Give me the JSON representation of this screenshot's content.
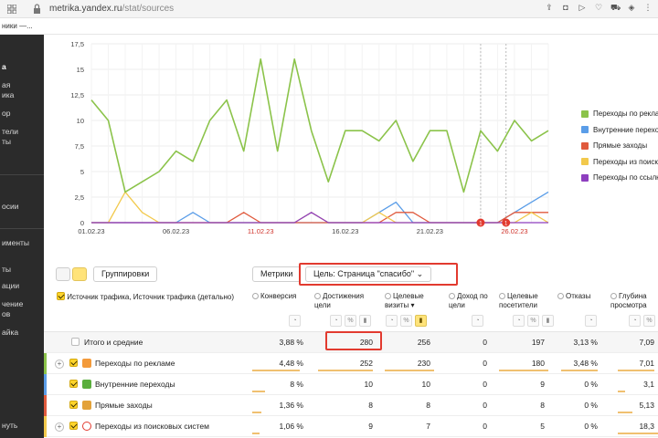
{
  "browser": {
    "url_host": "metrika.yandex.ru",
    "url_path": "/stat/sources",
    "tab_title": "ники —..."
  },
  "sidebar": {
    "items": [
      {
        "label": "а",
        "active": true
      },
      {
        "label": "ая",
        "active": false
      },
      {
        "label": "ика",
        "active": false
      },
      {
        "label": "ор",
        "active": false
      },
      {
        "label": "тели",
        "active": false
      },
      {
        "label": "ты",
        "active": false
      },
      {
        "label": "осии",
        "active": false
      },
      {
        "label": "именты",
        "active": false
      },
      {
        "label": "ты",
        "active": false
      },
      {
        "label": "ации",
        "active": false
      },
      {
        "label": "чение",
        "active": false
      },
      {
        "label": "ов",
        "active": false
      },
      {
        "label": "айка",
        "active": false
      },
      {
        "label": "нуть",
        "active": false
      }
    ]
  },
  "chart_data": {
    "type": "line",
    "title": "",
    "xlabel": "",
    "ylabel": "",
    "x_tick_labels": [
      {
        "label": "01.02.23",
        "index": 0,
        "weekend": false
      },
      {
        "label": "06.02.23",
        "index": 5,
        "weekend": false
      },
      {
        "label": "11.02.23",
        "index": 10,
        "weekend": true
      },
      {
        "label": "16.02.23",
        "index": 15,
        "weekend": false
      },
      {
        "label": "21.02.23",
        "index": 20,
        "weekend": false
      },
      {
        "label": "26.02.23",
        "index": 25,
        "weekend": true
      }
    ],
    "x_count": 28,
    "y_ticks": [
      "0",
      "2,5",
      "5",
      "7,5",
      "10",
      "12,5",
      "15",
      "17,5"
    ],
    "ylim": [
      0,
      17.5
    ],
    "grid": true,
    "legend_position": "right",
    "annotation_markers": [
      {
        "index": 23,
        "label": "1"
      },
      {
        "index": 24.5,
        "label": "1"
      }
    ],
    "series": [
      {
        "name": "Переходы по рекламе",
        "color": "#8bc34a",
        "values": [
          12,
          10,
          3,
          4,
          5,
          7,
          6,
          10,
          12,
          7,
          16,
          7,
          16,
          9,
          4,
          9,
          9,
          8,
          10,
          6,
          9,
          9,
          3,
          9,
          7,
          10,
          8,
          9
        ]
      },
      {
        "name": "Внутренние переходы",
        "color": "#5a9de8",
        "values": [
          0,
          0,
          0,
          0,
          0,
          0,
          1,
          0,
          0,
          0,
          0,
          0,
          0,
          0,
          0,
          0,
          0,
          1,
          2,
          0,
          0,
          0,
          0,
          0,
          0,
          1,
          2,
          3
        ]
      },
      {
        "name": "Прямые заходы",
        "color": "#e05a3d",
        "values": [
          0,
          0,
          0,
          0,
          0,
          0,
          0,
          0,
          0,
          1,
          0,
          0,
          0,
          0,
          0,
          0,
          0,
          0,
          1,
          1,
          0,
          0,
          0,
          0,
          0,
          1,
          1,
          1
        ]
      },
      {
        "name": "Переходы из поисковых систем",
        "color": "#f2c94c",
        "values": [
          0,
          0,
          3,
          1,
          0,
          0,
          0,
          0,
          0,
          0,
          0,
          0,
          0,
          1,
          0,
          0,
          0,
          1,
          0,
          0,
          0,
          0,
          0,
          0,
          0,
          0,
          1,
          0
        ]
      },
      {
        "name": "Переходы по ссылкам на сайтах",
        "color": "#8e3fbf",
        "values": [
          0,
          0,
          0,
          0,
          0,
          0,
          0,
          0,
          0,
          0,
          0,
          0,
          0,
          1,
          0,
          0,
          0,
          0,
          0,
          0,
          0,
          0,
          0,
          0,
          0,
          0,
          0,
          0
        ]
      }
    ]
  },
  "toolbar": {
    "groupings_label": "Группировки",
    "metrics_label": "Метрики",
    "goal_label": "Цель: Страница \"спасибо\""
  },
  "table": {
    "dimension_header": "Источник трафика, Источник трафика (детально)",
    "columns": [
      {
        "title": "Конверсия",
        "sorted": false
      },
      {
        "title": "Достижения цели",
        "sorted": false
      },
      {
        "title": "Целевые визиты",
        "sorted": true
      },
      {
        "title": "Доход по цели",
        "sorted": false
      },
      {
        "title": "Целевые посетители",
        "sorted": false
      },
      {
        "title": "Отказы",
        "sorted": false
      },
      {
        "title": "Глубина просмотра",
        "sorted": false
      }
    ],
    "total": {
      "label": "Итого и средние",
      "values": [
        "3,88 %",
        "280",
        "256",
        "0",
        "197",
        "3,13 %",
        "7,09"
      ]
    },
    "rows": [
      {
        "label": "Переходы по рекламе",
        "color": "#8bc34a",
        "icon": "ad-source-icon",
        "icon_color": "#f39a3a",
        "values": [
          "4,48 %",
          "252",
          "230",
          "0",
          "180",
          "3,48 %",
          "7,01"
        ],
        "conversion_fraction": 0.9
      },
      {
        "label": "Внутренние переходы",
        "color": "#5a9de8",
        "icon": "internal-source-icon",
        "icon_color": "#5aae3d",
        "values": [
          "8 %",
          "10",
          "10",
          "0",
          "9",
          "0 %",
          "3,1"
        ],
        "conversion_fraction": 0.0
      },
      {
        "label": "Прямые заходы",
        "color": "#e05a3d",
        "icon": "direct-source-icon",
        "icon_color": "#e3a23a",
        "values": [
          "1,36 %",
          "8",
          "8",
          "0",
          "8",
          "0 %",
          "5,13"
        ],
        "conversion_fraction": 0.0
      },
      {
        "label": "Переходы из поисковых систем",
        "color": "#f2c94c",
        "icon": "search-source-icon",
        "icon_color": "#e23a2f",
        "values": [
          "1,06 %",
          "9",
          "7",
          "0",
          "5",
          "0 %",
          "18,3"
        ],
        "conversion_fraction": 0.0
      }
    ]
  }
}
